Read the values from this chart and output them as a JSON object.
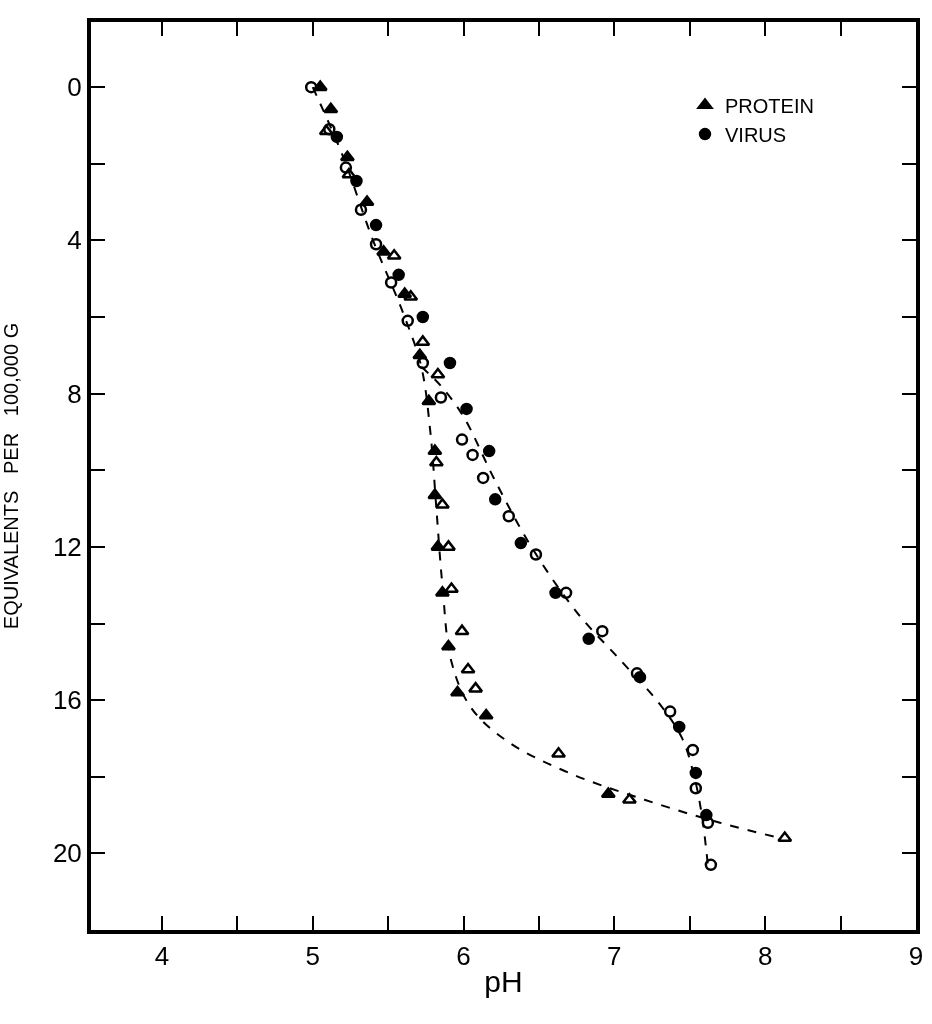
{
  "chart_data": {
    "type": "scatter",
    "xlabel": "pH",
    "ylabel": "EQUIVALENTS   PER   100,000 G",
    "xlim": [
      3.53,
      9.0
    ],
    "ylim": [
      22.0,
      -1.7
    ],
    "xticks": [
      4,
      {
        "value": 4.5,
        "label": null
      },
      5,
      {
        "value": 5.5,
        "label": null
      },
      6,
      {
        "value": 6.5,
        "label": null
      },
      7,
      {
        "value": 7.5,
        "label": null
      },
      8,
      {
        "value": 8.5,
        "label": null
      },
      9
    ],
    "yticks": [
      0,
      {
        "value": 2,
        "label": null
      },
      4,
      {
        "value": 6,
        "label": null
      },
      8,
      {
        "value": 10,
        "label": null
      },
      12,
      {
        "value": 14,
        "label": null
      },
      16,
      {
        "value": 18,
        "label": null
      },
      20
    ],
    "legend": "top right",
    "series": [
      {
        "name": "PROTEIN",
        "color": "#000000",
        "marker": "triangle",
        "x": [
          5.05,
          5.12,
          5.23,
          5.36,
          5.47,
          5.61,
          5.71,
          5.77,
          5.81,
          5.81,
          5.83,
          5.86,
          5.9,
          5.96,
          6.15,
          6.96
        ],
        "values": [
          0.0,
          0.58,
          1.83,
          3.0,
          4.3,
          5.4,
          7.0,
          8.2,
          9.5,
          10.65,
          12.0,
          13.2,
          14.6,
          15.8,
          16.4,
          18.45
        ]
      },
      {
        "color": "#000000",
        "marker": "triangle",
        "x": [
          5.09,
          5.24,
          5.54,
          5.65,
          5.73,
          5.83,
          5.82,
          5.86,
          5.9,
          5.92,
          5.99,
          6.03,
          6.08,
          6.63,
          7.1,
          8.13
        ],
        "values": [
          1.15,
          2.28,
          4.4,
          5.47,
          6.65,
          7.5,
          9.8,
          10.9,
          12.0,
          13.1,
          14.2,
          15.2,
          15.7,
          17.4,
          18.6,
          19.6
        ]
      },
      {
        "name": "VIRUS",
        "color": "#000000",
        "marker": "circle",
        "x": [
          5.16,
          5.29,
          5.42,
          5.57,
          5.73,
          5.91,
          6.02,
          6.17,
          6.21,
          6.38,
          6.61,
          6.83,
          7.17,
          7.43,
          7.54,
          7.61
        ],
        "values": [
          1.3,
          2.45,
          3.6,
          4.9,
          6.0,
          7.2,
          8.4,
          9.5,
          10.76,
          11.9,
          13.2,
          14.4,
          15.4,
          16.7,
          17.9,
          19.0
        ]
      },
      {
        "color": "#000000",
        "marker": "circle",
        "x": [
          4.99,
          5.11,
          5.22,
          5.32,
          5.42,
          5.52,
          5.63,
          5.73,
          5.85,
          5.99,
          6.06,
          6.13,
          6.3,
          6.48,
          6.68,
          6.92,
          7.15,
          7.37,
          7.52,
          7.54,
          7.62,
          7.64
        ],
        "values": [
          0.0,
          1.1,
          2.1,
          3.2,
          4.1,
          5.1,
          6.1,
          7.2,
          8.1,
          9.2,
          9.6,
          10.2,
          11.2,
          12.2,
          13.2,
          14.2,
          15.3,
          16.3,
          17.3,
          18.3,
          19.2,
          20.3
        ]
      },
      {
        "type": "line",
        "color": "#000000",
        "marker": "none",
        "line_style": "dashed",
        "x": [
          5.0,
          5.2,
          5.4,
          5.6,
          5.72,
          5.78,
          5.82,
          5.86,
          5.92,
          6.05,
          6.3,
          6.7,
          7.2,
          7.7,
          8.1
        ],
        "values": [
          0.0,
          1.8,
          4.0,
          5.9,
          7.3,
          9.0,
          11.0,
          13.0,
          15.0,
          16.2,
          17.1,
          17.9,
          18.6,
          19.2,
          19.6
        ]
      },
      {
        "type": "line",
        "color": "#000000",
        "marker": "none",
        "line_style": "dashed",
        "x": [
          5.72,
          5.85,
          6.0,
          6.2,
          6.45,
          6.75,
          7.05,
          7.3,
          7.45,
          7.53,
          7.58,
          7.62
        ],
        "values": [
          7.3,
          7.8,
          8.6,
          10.2,
          12.0,
          13.7,
          15.0,
          16.1,
          17.0,
          18.0,
          19.0,
          20.3
        ]
      }
    ]
  }
}
